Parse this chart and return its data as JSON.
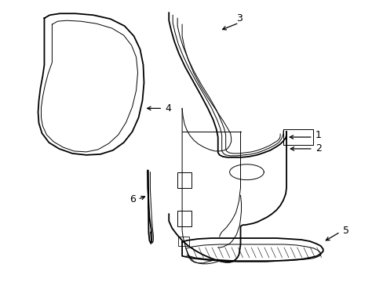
{
  "background_color": "#ffffff",
  "line_color": "#000000",
  "lw_main": 1.3,
  "lw_thin": 0.7,
  "lw_extra": 0.5,
  "fig_width": 4.89,
  "fig_height": 3.6,
  "dpi": 100,
  "xlim": [
    0,
    489
  ],
  "ylim": [
    0,
    360
  ]
}
